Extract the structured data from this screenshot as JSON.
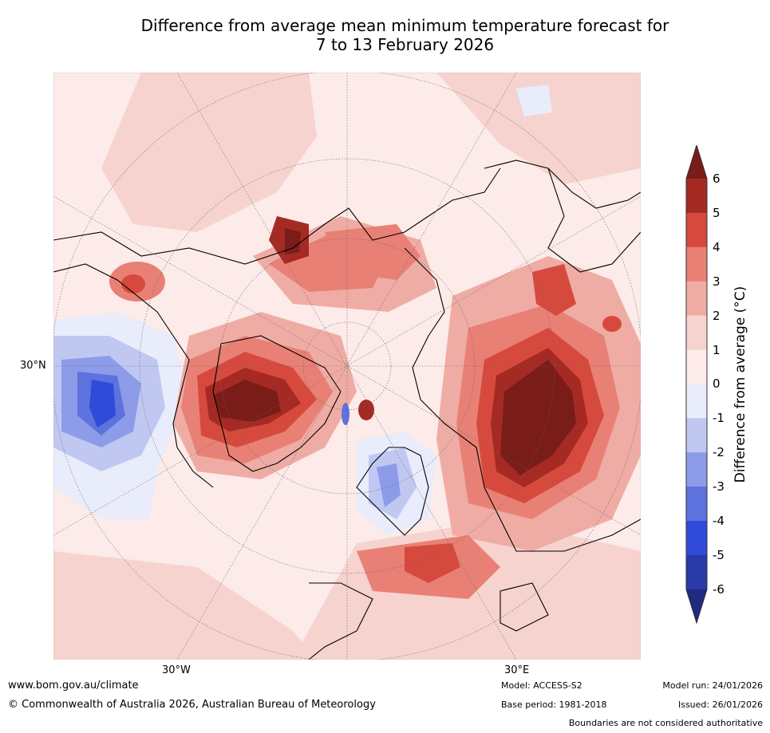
{
  "title": {
    "line1": "Difference from average mean minimum temperature forecast for",
    "line2": "7 to 13 February 2026"
  },
  "map": {
    "lat_label": "30°N",
    "lon_labels": [
      "30°W",
      "30°E"
    ]
  },
  "colorbar": {
    "label": "Difference from average (°C)",
    "ticks": [
      "6",
      "5",
      "4",
      "3",
      "2",
      "1",
      "0",
      "-1",
      "-2",
      "-3",
      "-4",
      "-5",
      "-6"
    ],
    "colors": [
      "#7a1c18",
      "#a52a24",
      "#d64a3e",
      "#e98075",
      "#efaca4",
      "#f6d3cf",
      "#fcebe8",
      "#e9ecfb",
      "#c0c8f2",
      "#8d9ce8",
      "#5e72de",
      "#2f4bd8",
      "#2a3aa8",
      "#1f2a80"
    ]
  },
  "footer": {
    "website": "www.bom.gov.au/climate",
    "copyright": "© Commonwealth of Australia 2026, Australian Bureau of Meteorology",
    "model": "Model: ACCESS-S2",
    "base_period": "Base period: 1981-2018",
    "model_run": "Model run: 24/01/2026",
    "issued": "Issued: 26/01/2026",
    "disclaimer": "Boundaries are not considered authoritative"
  }
}
